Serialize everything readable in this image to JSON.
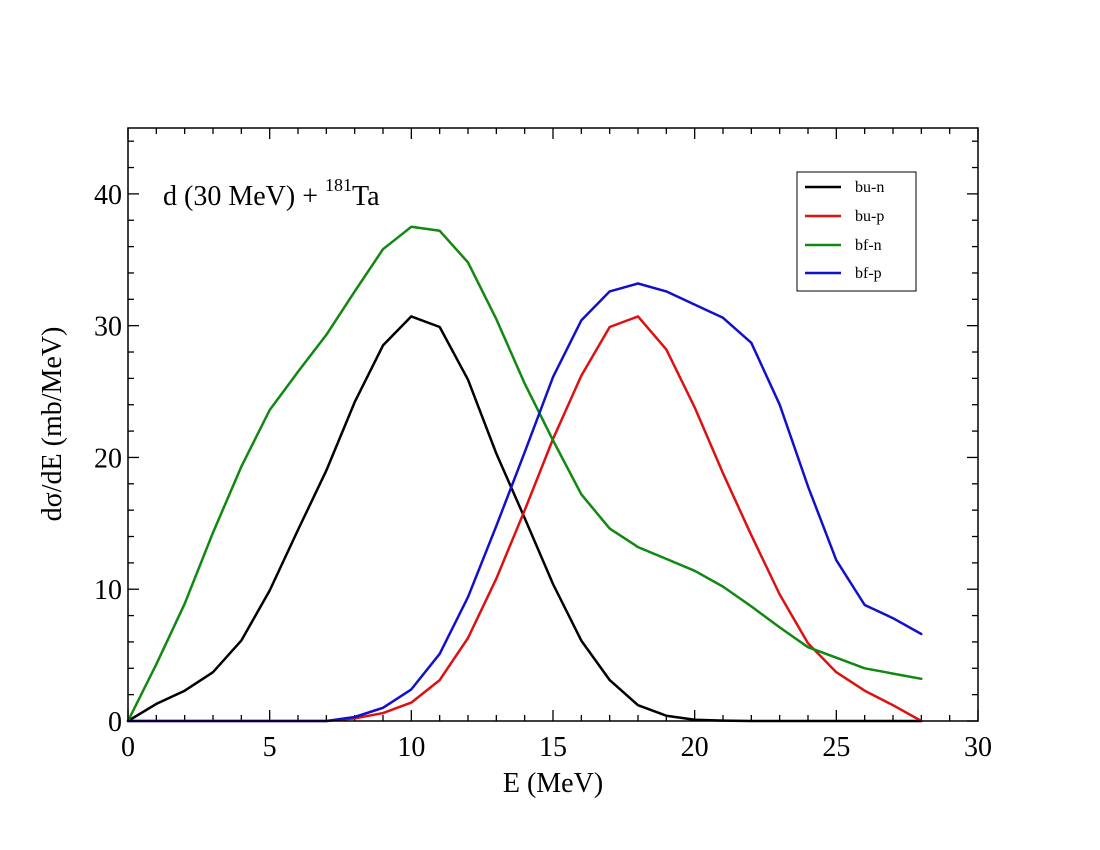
{
  "chart_data": {
    "type": "line",
    "title": "",
    "annotation": {
      "prefix": "d (30 MeV) + ",
      "superscript": "181",
      "suffix": "Ta"
    },
    "xlabel": "E (MeV)",
    "ylabel": "dσ/dE (mb/MeV)",
    "xlim": [
      0,
      30
    ],
    "ylim": [
      0,
      45
    ],
    "xticks": [
      0,
      5,
      10,
      15,
      20,
      25,
      30
    ],
    "yticks": [
      0,
      10,
      20,
      30,
      40
    ],
    "xminor": 1,
    "yminor": 2,
    "grid": false,
    "legend_position": "top-right",
    "x": [
      0,
      1,
      2,
      3,
      4,
      5,
      6,
      7,
      8,
      9,
      10,
      11,
      12,
      13,
      14,
      15,
      16,
      17,
      18,
      19,
      20,
      21,
      22,
      23,
      24,
      25,
      26,
      27,
      28
    ],
    "series": [
      {
        "name": "bu-n",
        "color": "#000000",
        "values": [
          0,
          1.3,
          2.3,
          3.7,
          6.1,
          9.9,
          14.5,
          19,
          24.2,
          28.5,
          30.7,
          29.9,
          25.9,
          20.3,
          15.4,
          10.4,
          6.1,
          3.1,
          1.2,
          0.4,
          0.1,
          0.03,
          0,
          0,
          0,
          0,
          0,
          0,
          0
        ]
      },
      {
        "name": "bu-p",
        "color": "#dd1111",
        "values": [
          0,
          0,
          0,
          0,
          0,
          0,
          0,
          0,
          0.2,
          0.6,
          1.4,
          3.1,
          6.3,
          10.8,
          16,
          21.4,
          26.2,
          29.9,
          30.7,
          28.2,
          23.8,
          18.8,
          14.1,
          9.6,
          5.9,
          3.7,
          2.3,
          1.2,
          0
        ]
      },
      {
        "name": "bf-n",
        "color": "#118811",
        "values": [
          0,
          4.3,
          8.9,
          14.3,
          19.3,
          23.6,
          26.5,
          29.3,
          32.6,
          35.8,
          37.5,
          37.2,
          34.8,
          30.5,
          25.6,
          21.3,
          17.2,
          14.6,
          13.2,
          12.3,
          11.4,
          10.2,
          8.7,
          7.1,
          5.6,
          4.8,
          4,
          3.6,
          3.2
        ]
      },
      {
        "name": "bf-p",
        "color": "#1111cc",
        "values": [
          0,
          0,
          0,
          0,
          0,
          0,
          0,
          0,
          0.3,
          1,
          2.4,
          5.1,
          9.4,
          14.8,
          20.4,
          26.1,
          30.4,
          32.6,
          33.2,
          32.6,
          31.6,
          30.6,
          28.7,
          24,
          17.8,
          12.2,
          8.8,
          7.8,
          6.6
        ]
      }
    ]
  }
}
